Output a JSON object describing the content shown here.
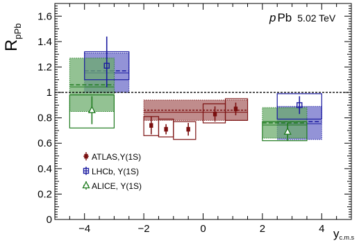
{
  "chart_data": {
    "type": "scatter",
    "title": "",
    "xlabel": "y",
    "xlabel_subscript": "c.m.s",
    "ylabel": "R",
    "ylabel_subscript": "pPb",
    "xlim": [
      -5.0,
      5.0
    ],
    "ylim": [
      0,
      1.7
    ],
    "x_ticks": [
      -4,
      -2,
      0,
      2,
      4
    ],
    "x_tick_labels": [
      "−4",
      "−2",
      "0",
      "2",
      "4"
    ],
    "y_ticks": [
      0,
      0.2,
      0.4,
      0.6,
      0.8,
      1,
      1.2,
      1.4,
      1.6
    ],
    "y_tick_labels": [
      "0",
      "0.2",
      "0.4",
      "0.6",
      "0.8",
      "1",
      "1.2",
      "1.4",
      "1.6"
    ],
    "reference_line": 1.0,
    "grid": false,
    "legend_position": "bottom-left",
    "system_label": {
      "italic": "p",
      "text": "Pb",
      "energy": "5.02 TeV"
    },
    "series": [
      {
        "name": "ATLAS,Υ(1S)",
        "marker": "filled-diamond",
        "color": "#7b1010",
        "fill": "#a86060",
        "points": [
          {
            "x": -1.75,
            "y": 0.74,
            "stat": 0.07,
            "x_lo": -2.0,
            "x_hi": -1.5
          },
          {
            "x": -1.25,
            "y": 0.71,
            "stat": 0.04,
            "x_lo": -1.5,
            "x_hi": -1.0
          },
          {
            "x": -0.5,
            "y": 0.71,
            "stat": 0.05,
            "x_lo": -1.0,
            "x_hi": -0.5
          },
          {
            "x": 0.4,
            "y": 0.83,
            "stat": 0.06,
            "x_lo": 0.0,
            "x_hi": 0.75
          },
          {
            "x": 1.1,
            "y": 0.87,
            "stat": 0.05,
            "x_lo": 0.75,
            "x_hi": 1.5
          }
        ],
        "boxes": [
          {
            "x_lo": -2.0,
            "x_hi": -1.5,
            "y_lo": 0.66,
            "y_hi": 0.81
          },
          {
            "x_lo": -1.5,
            "x_hi": -1.0,
            "y_lo": 0.65,
            "y_hi": 0.79
          },
          {
            "x_lo": -1.0,
            "x_hi": -0.25,
            "y_lo": 0.63,
            "y_hi": 0.77
          },
          {
            "x_lo": 0.0,
            "x_hi": 0.75,
            "y_lo": 0.76,
            "y_hi": 0.91
          },
          {
            "x_lo": 0.75,
            "x_hi": 1.5,
            "y_lo": 0.78,
            "y_hi": 0.95
          }
        ],
        "integrated": {
          "x_lo": -2.0,
          "x_hi": 1.5,
          "y": 0.86,
          "band_lo": 0.78,
          "band_hi": 0.94
        }
      },
      {
        "name": "LHCb,  Υ(1S)",
        "marker": "open-square",
        "color": "#1a1aa0",
        "fill": "#6a6ac8",
        "points": [
          {
            "x": -3.25,
            "y": 1.21,
            "stat_hi": 0.23,
            "stat_lo": 0.17,
            "x_lo": -4.0,
            "x_hi": -2.5
          },
          {
            "x": 3.25,
            "y": 0.9,
            "stat": 0.07,
            "x_lo": 2.5,
            "x_hi": 4.0
          }
        ],
        "boxes": [
          {
            "x_lo": -4.0,
            "x_hi": -2.5,
            "y_lo": 1.1,
            "y_hi": 1.32
          },
          {
            "x_lo": 2.5,
            "x_hi": 4.0,
            "y_lo": 0.79,
            "y_hi": 0.99
          }
        ],
        "integrated": [
          {
            "x_lo": -4.0,
            "x_hi": -2.5,
            "y": 1.17,
            "band_lo": 1.0,
            "band_hi": 1.31
          },
          {
            "x_lo": 2.5,
            "x_hi": 4.0,
            "y": 0.77,
            "band_lo": 0.63,
            "band_hi": 0.89
          }
        ]
      },
      {
        "name": "ALICE, Υ(1S)",
        "marker": "open-triangle",
        "color": "#1e7a1e",
        "fill": "#6aaa6a",
        "points": [
          {
            "x": -3.75,
            "y": 0.86,
            "stat": 0.11,
            "x_lo": -4.5,
            "x_hi": -3.0
          },
          {
            "x": 2.85,
            "y": 0.69,
            "stat": 0.07,
            "x_lo": 2.0,
            "x_hi": 3.5
          }
        ],
        "boxes": [
          {
            "x_lo": -4.5,
            "x_hi": -3.0,
            "y_lo": 0.72,
            "y_hi": 0.98
          },
          {
            "x_lo": 2.0,
            "x_hi": 3.5,
            "y_lo": 0.62,
            "y_hi": 0.77
          }
        ],
        "integrated": [
          {
            "x_lo": -4.5,
            "x_hi": -3.0,
            "y": 1.06,
            "band_lo": 0.85,
            "band_hi": 1.27
          },
          {
            "x_lo": 2.0,
            "x_hi": 3.5,
            "y": 0.76,
            "band_lo": 0.64,
            "band_hi": 0.88
          }
        ]
      }
    ]
  }
}
